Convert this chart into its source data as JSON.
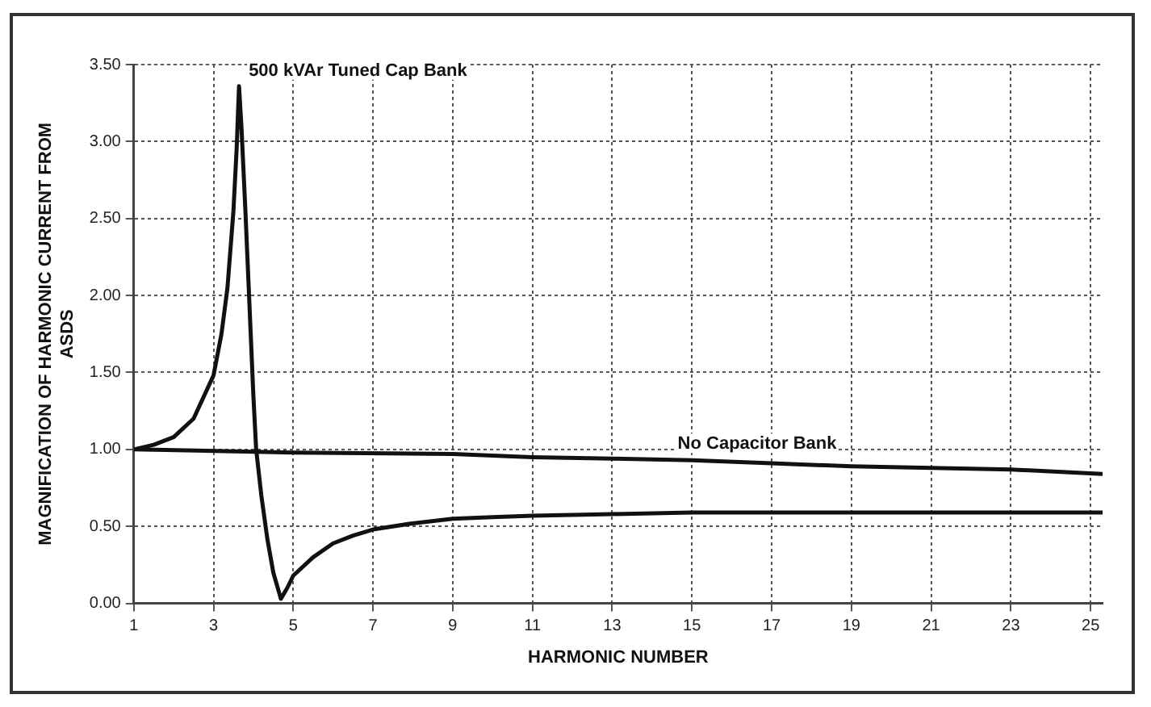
{
  "chart_data": {
    "type": "line",
    "xlabel": "HARMONIC NUMBER",
    "ylabel": "MAGNIFICATION OF HARMONIC CURRENT FROM ASDS",
    "xlim": [
      1,
      25.3
    ],
    "xticks": [
      1,
      3,
      5,
      7,
      9,
      11,
      13,
      15,
      17,
      19,
      21,
      23,
      25
    ],
    "ylim": [
      0,
      3.5
    ],
    "yticks": [
      {
        "value": 0,
        "label": "0.00"
      },
      {
        "value": 0.5,
        "label": "0.50"
      },
      {
        "value": 1,
        "label": "1.00"
      },
      {
        "value": 1.5,
        "label": "1.50"
      },
      {
        "value": 2,
        "label": "2.00"
      },
      {
        "value": 2.5,
        "label": "2.50"
      },
      {
        "value": 3,
        "label": "3.00"
      },
      {
        "value": 3.5,
        "label": "3.50"
      }
    ],
    "series": [
      {
        "color": "#111111",
        "x": [
          1,
          1.5,
          2,
          2.5,
          3,
          3.2,
          3.35,
          3.5,
          3.58,
          3.64,
          3.7,
          3.8,
          3.9,
          4.0,
          4.07,
          4.2,
          4.35,
          4.5,
          4.69,
          4.85,
          5,
          5.5,
          6,
          6.5,
          7,
          8,
          9,
          10,
          11,
          13,
          15,
          17,
          19,
          21,
          23,
          25,
          25.3
        ],
        "values": [
          1,
          1.03,
          1.08,
          1.2,
          1.48,
          1.75,
          2.05,
          2.55,
          2.95,
          3.36,
          3.1,
          2.55,
          1.95,
          1.35,
          1.0,
          0.7,
          0.42,
          0.2,
          0.03,
          0.1,
          0.18,
          0.3,
          0.39,
          0.44,
          0.48,
          0.52,
          0.55,
          0.56,
          0.57,
          0.58,
          0.59,
          0.59,
          0.59,
          0.59,
          0.59,
          0.59,
          0.59
        ]
      },
      {
        "color": "#111111",
        "x": [
          1,
          5,
          9,
          11,
          13,
          15,
          17,
          19,
          21,
          23,
          25.3
        ],
        "values": [
          1,
          0.98,
          0.97,
          0.95,
          0.94,
          0.93,
          0.91,
          0.89,
          0.88,
          0.87,
          0.84
        ]
      }
    ],
    "annotations": [
      {
        "text": "500 kVAr Tuned Cap Bank",
        "x": 3.64,
        "y": 3.36
      },
      {
        "text": "No Capacitor Bank",
        "x": 14.4,
        "y": 0.935
      }
    ],
    "grid": true,
    "legend": false,
    "line_style": "solid",
    "marker": "none"
  }
}
